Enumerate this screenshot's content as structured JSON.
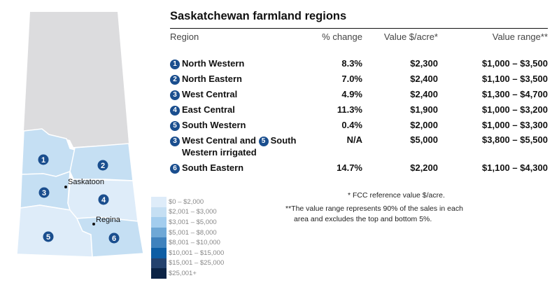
{
  "title": "Saskatchewan farmland regions",
  "headers": {
    "region": "Region",
    "pct": "% change",
    "value": "Value $/acre*",
    "range": "Value range**"
  },
  "rows": [
    {
      "n": "1",
      "name": "North Western",
      "pct": "8.3%",
      "value": "$2,300",
      "range": "$1,000 – $3,500"
    },
    {
      "n": "2",
      "name": "North Eastern",
      "pct": "7.0%",
      "value": "$2,400",
      "range": "$1,100 – $3,500"
    },
    {
      "n": "3",
      "name": "West Central",
      "pct": "4.9%",
      "value": "$2,400",
      "range": "$1,300 – $4,700"
    },
    {
      "n": "4",
      "name": "East Central",
      "pct": "11.3%",
      "value": "$1,900",
      "range": "$1,000 – $3,200"
    },
    {
      "n": "5",
      "name": "South Western",
      "pct": "0.4%",
      "value": "$2,000",
      "range": "$1,000 – $3,300"
    }
  ],
  "irrigated": {
    "n1": "3",
    "part1": "West Central and",
    "n2": "5",
    "part2": "South",
    "line2": "Western irrigated",
    "pct": "N/A",
    "value": "$5,000",
    "range": "$3,800 – $5,500"
  },
  "last": {
    "n": "6",
    "name": "South Eastern",
    "pct": "14.7%",
    "value": "$2,200",
    "range": "$1,100 – $4,300"
  },
  "footnote1": "* FCC reference value $/acre.",
  "footnote2a": "**The value range represents 90% of the sales in each",
  "footnote2b": "area and excludes the top and bottom 5%.",
  "map": {
    "cities": [
      "Saskatoon",
      "Regina"
    ],
    "labels": [
      "1",
      "2",
      "3",
      "4",
      "5",
      "6"
    ]
  },
  "legend": [
    {
      "label": "$0 – $2,000",
      "color": "#deecf9"
    },
    {
      "label": "$2,001 – $3,000",
      "color": "#c5dff3"
    },
    {
      "label": "$3,001 – $5,000",
      "color": "#a3cdee"
    },
    {
      "label": "$5,001 – $8,000",
      "color": "#6fa8d6"
    },
    {
      "label": "$8,001 – $10,000",
      "color": "#3f82bd"
    },
    {
      "label": "$10,001 – $15,000",
      "color": "#0d5da4"
    },
    {
      "label": "$15,001 – $25,000",
      "color": "#24426e"
    },
    {
      "label": "$25,001+",
      "color": "#0b2345"
    }
  ],
  "colors": {
    "badge": "#1a4e8e",
    "unfarmed": "#dcdcde"
  }
}
